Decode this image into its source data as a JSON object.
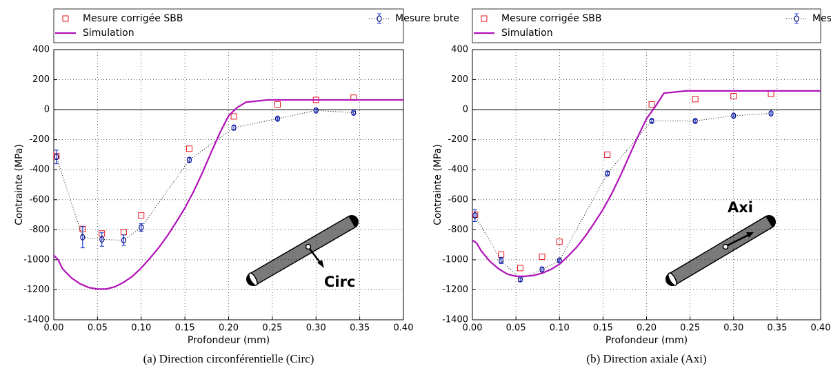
{
  "chart_data": [
    {
      "type": "line",
      "caption": "(a) Direction circonférentielle (Circ)",
      "xlabel": "Profondeur (mm)",
      "ylabel": "Contrainte (MPa)",
      "annotation": "Circ",
      "grid": true,
      "xlim": [
        0,
        0.4
      ],
      "ylim": [
        -1400,
        400
      ],
      "xticks": [
        {
          "value": 0,
          "label": "0.00"
        },
        {
          "value": 0.05,
          "label": "0.05"
        },
        {
          "value": 0.1,
          "label": "0.10"
        },
        {
          "value": 0.15,
          "label": "0.15"
        },
        {
          "value": 0.2,
          "label": "0.20"
        },
        {
          "value": 0.25,
          "label": "0.25"
        },
        {
          "value": 0.3,
          "label": "0.30"
        },
        {
          "value": 0.35,
          "label": "0.35"
        },
        {
          "value": 0.4,
          "label": "0.40"
        }
      ],
      "yticks": [
        -1400,
        -1200,
        -1000,
        -800,
        -600,
        -400,
        -200,
        0,
        200,
        400
      ],
      "series": [
        {
          "name": "Mesure corrigée SBB",
          "color": "#e8141c",
          "marker": "square",
          "x": [
            0.003,
            0.033,
            0.055,
            0.08,
            0.1,
            0.155,
            0.206,
            0.256,
            0.3,
            0.343
          ],
          "values": [
            -310,
            -795,
            -825,
            -815,
            -705,
            -260,
            -45,
            35,
            65,
            80
          ]
        },
        {
          "name": "Mesure brute",
          "color": "#0a0a8c",
          "marker": "errorbar",
          "x": [
            0.003,
            0.033,
            0.055,
            0.08,
            0.1,
            0.155,
            0.206,
            0.256,
            0.3,
            0.343
          ],
          "values": [
            -315,
            -850,
            -865,
            -870,
            -785,
            -335,
            -120,
            -60,
            -5,
            -20
          ],
          "errors": [
            45,
            70,
            45,
            35,
            25,
            15,
            15,
            10,
            10,
            10
          ]
        },
        {
          "name": "Simulation",
          "color": "#b010b8",
          "marker": "line",
          "x": [
            0,
            0.005,
            0.01,
            0.02,
            0.03,
            0.04,
            0.05,
            0.06,
            0.07,
            0.08,
            0.09,
            0.1,
            0.11,
            0.12,
            0.13,
            0.14,
            0.15,
            0.16,
            0.17,
            0.18,
            0.19,
            0.2,
            0.21,
            0.22,
            0.245,
            0.3,
            0.35,
            0.4
          ],
          "values": [
            -970,
            -1000,
            -1060,
            -1120,
            -1160,
            -1185,
            -1195,
            -1195,
            -1180,
            -1150,
            -1110,
            -1055,
            -990,
            -920,
            -840,
            -750,
            -655,
            -545,
            -420,
            -285,
            -155,
            -40,
            15,
            50,
            65,
            65,
            65,
            65
          ]
        }
      ]
    },
    {
      "type": "line",
      "caption": "(b) Direction axiale (Axi)",
      "xlabel": "Profondeur (mm)",
      "ylabel": "Contrainte (MPa)",
      "annotation": "Axi",
      "grid": true,
      "xlim": [
        0,
        0.4
      ],
      "ylim": [
        -1400,
        400
      ],
      "xticks": [
        {
          "value": 0,
          "label": "0.00"
        },
        {
          "value": 0.05,
          "label": "0.05"
        },
        {
          "value": 0.1,
          "label": "0.10"
        },
        {
          "value": 0.15,
          "label": "0.15"
        },
        {
          "value": 0.2,
          "label": "0.20"
        },
        {
          "value": 0.25,
          "label": "0.25"
        },
        {
          "value": 0.3,
          "label": "0.30"
        },
        {
          "value": 0.35,
          "label": "0.35"
        },
        {
          "value": 0.4,
          "label": "0.40"
        }
      ],
      "yticks": [
        -1400,
        -1200,
        -1000,
        -800,
        -600,
        -400,
        -200,
        0,
        200,
        400
      ],
      "series": [
        {
          "name": "Mesure corrigée SBB",
          "color": "#e8141c",
          "marker": "square",
          "x": [
            0.003,
            0.033,
            0.055,
            0.08,
            0.1,
            0.155,
            0.206,
            0.256,
            0.3,
            0.343
          ],
          "values": [
            -700,
            -965,
            -1055,
            -980,
            -880,
            -300,
            35,
            70,
            90,
            105
          ]
        },
        {
          "name": "Mesure brute",
          "color": "#0a0a8c",
          "marker": "errorbar",
          "x": [
            0.003,
            0.033,
            0.055,
            0.08,
            0.1,
            0.155,
            0.206,
            0.256,
            0.3,
            0.343
          ],
          "values": [
            -705,
            -1005,
            -1130,
            -1065,
            -1005,
            -425,
            -75,
            -75,
            -40,
            -25
          ],
          "errors": [
            40,
            20,
            15,
            15,
            10,
            10,
            10,
            10,
            10,
            10
          ]
        },
        {
          "name": "Simulation",
          "color": "#b010b8",
          "marker": "line",
          "x": [
            0,
            0.005,
            0.01,
            0.02,
            0.03,
            0.04,
            0.05,
            0.06,
            0.07,
            0.08,
            0.09,
            0.1,
            0.11,
            0.12,
            0.13,
            0.14,
            0.15,
            0.16,
            0.17,
            0.18,
            0.19,
            0.2,
            0.21,
            0.22,
            0.245,
            0.3,
            0.35,
            0.4
          ],
          "values": [
            -870,
            -890,
            -940,
            -1010,
            -1060,
            -1095,
            -1110,
            -1110,
            -1105,
            -1090,
            -1065,
            -1030,
            -975,
            -915,
            -840,
            -755,
            -665,
            -560,
            -440,
            -310,
            -180,
            -60,
            20,
            110,
            125,
            125,
            125,
            125
          ]
        }
      ]
    }
  ]
}
